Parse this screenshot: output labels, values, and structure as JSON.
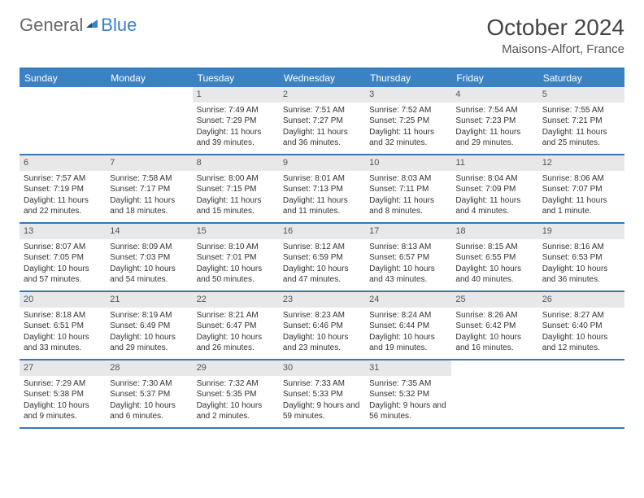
{
  "logo": {
    "text1": "General",
    "text2": "Blue"
  },
  "title": "October 2024",
  "location": "Maisons-Alfort, France",
  "colors": {
    "header_bar": "#3b82c4",
    "border": "#3478b8",
    "daynum_bg": "#e7e8e9",
    "logo_blue": "#3b7fc4"
  },
  "weekdays": [
    "Sunday",
    "Monday",
    "Tuesday",
    "Wednesday",
    "Thursday",
    "Friday",
    "Saturday"
  ],
  "weeks": [
    [
      {
        "n": "",
        "sr": "",
        "ss": "",
        "dl": ""
      },
      {
        "n": "",
        "sr": "",
        "ss": "",
        "dl": ""
      },
      {
        "n": "1",
        "sr": "Sunrise: 7:49 AM",
        "ss": "Sunset: 7:29 PM",
        "dl": "Daylight: 11 hours and 39 minutes."
      },
      {
        "n": "2",
        "sr": "Sunrise: 7:51 AM",
        "ss": "Sunset: 7:27 PM",
        "dl": "Daylight: 11 hours and 36 minutes."
      },
      {
        "n": "3",
        "sr": "Sunrise: 7:52 AM",
        "ss": "Sunset: 7:25 PM",
        "dl": "Daylight: 11 hours and 32 minutes."
      },
      {
        "n": "4",
        "sr": "Sunrise: 7:54 AM",
        "ss": "Sunset: 7:23 PM",
        "dl": "Daylight: 11 hours and 29 minutes."
      },
      {
        "n": "5",
        "sr": "Sunrise: 7:55 AM",
        "ss": "Sunset: 7:21 PM",
        "dl": "Daylight: 11 hours and 25 minutes."
      }
    ],
    [
      {
        "n": "6",
        "sr": "Sunrise: 7:57 AM",
        "ss": "Sunset: 7:19 PM",
        "dl": "Daylight: 11 hours and 22 minutes."
      },
      {
        "n": "7",
        "sr": "Sunrise: 7:58 AM",
        "ss": "Sunset: 7:17 PM",
        "dl": "Daylight: 11 hours and 18 minutes."
      },
      {
        "n": "8",
        "sr": "Sunrise: 8:00 AM",
        "ss": "Sunset: 7:15 PM",
        "dl": "Daylight: 11 hours and 15 minutes."
      },
      {
        "n": "9",
        "sr": "Sunrise: 8:01 AM",
        "ss": "Sunset: 7:13 PM",
        "dl": "Daylight: 11 hours and 11 minutes."
      },
      {
        "n": "10",
        "sr": "Sunrise: 8:03 AM",
        "ss": "Sunset: 7:11 PM",
        "dl": "Daylight: 11 hours and 8 minutes."
      },
      {
        "n": "11",
        "sr": "Sunrise: 8:04 AM",
        "ss": "Sunset: 7:09 PM",
        "dl": "Daylight: 11 hours and 4 minutes."
      },
      {
        "n": "12",
        "sr": "Sunrise: 8:06 AM",
        "ss": "Sunset: 7:07 PM",
        "dl": "Daylight: 11 hours and 1 minute."
      }
    ],
    [
      {
        "n": "13",
        "sr": "Sunrise: 8:07 AM",
        "ss": "Sunset: 7:05 PM",
        "dl": "Daylight: 10 hours and 57 minutes."
      },
      {
        "n": "14",
        "sr": "Sunrise: 8:09 AM",
        "ss": "Sunset: 7:03 PM",
        "dl": "Daylight: 10 hours and 54 minutes."
      },
      {
        "n": "15",
        "sr": "Sunrise: 8:10 AM",
        "ss": "Sunset: 7:01 PM",
        "dl": "Daylight: 10 hours and 50 minutes."
      },
      {
        "n": "16",
        "sr": "Sunrise: 8:12 AM",
        "ss": "Sunset: 6:59 PM",
        "dl": "Daylight: 10 hours and 47 minutes."
      },
      {
        "n": "17",
        "sr": "Sunrise: 8:13 AM",
        "ss": "Sunset: 6:57 PM",
        "dl": "Daylight: 10 hours and 43 minutes."
      },
      {
        "n": "18",
        "sr": "Sunrise: 8:15 AM",
        "ss": "Sunset: 6:55 PM",
        "dl": "Daylight: 10 hours and 40 minutes."
      },
      {
        "n": "19",
        "sr": "Sunrise: 8:16 AM",
        "ss": "Sunset: 6:53 PM",
        "dl": "Daylight: 10 hours and 36 minutes."
      }
    ],
    [
      {
        "n": "20",
        "sr": "Sunrise: 8:18 AM",
        "ss": "Sunset: 6:51 PM",
        "dl": "Daylight: 10 hours and 33 minutes."
      },
      {
        "n": "21",
        "sr": "Sunrise: 8:19 AM",
        "ss": "Sunset: 6:49 PM",
        "dl": "Daylight: 10 hours and 29 minutes."
      },
      {
        "n": "22",
        "sr": "Sunrise: 8:21 AM",
        "ss": "Sunset: 6:47 PM",
        "dl": "Daylight: 10 hours and 26 minutes."
      },
      {
        "n": "23",
        "sr": "Sunrise: 8:23 AM",
        "ss": "Sunset: 6:46 PM",
        "dl": "Daylight: 10 hours and 23 minutes."
      },
      {
        "n": "24",
        "sr": "Sunrise: 8:24 AM",
        "ss": "Sunset: 6:44 PM",
        "dl": "Daylight: 10 hours and 19 minutes."
      },
      {
        "n": "25",
        "sr": "Sunrise: 8:26 AM",
        "ss": "Sunset: 6:42 PM",
        "dl": "Daylight: 10 hours and 16 minutes."
      },
      {
        "n": "26",
        "sr": "Sunrise: 8:27 AM",
        "ss": "Sunset: 6:40 PM",
        "dl": "Daylight: 10 hours and 12 minutes."
      }
    ],
    [
      {
        "n": "27",
        "sr": "Sunrise: 7:29 AM",
        "ss": "Sunset: 5:38 PM",
        "dl": "Daylight: 10 hours and 9 minutes."
      },
      {
        "n": "28",
        "sr": "Sunrise: 7:30 AM",
        "ss": "Sunset: 5:37 PM",
        "dl": "Daylight: 10 hours and 6 minutes."
      },
      {
        "n": "29",
        "sr": "Sunrise: 7:32 AM",
        "ss": "Sunset: 5:35 PM",
        "dl": "Daylight: 10 hours and 2 minutes."
      },
      {
        "n": "30",
        "sr": "Sunrise: 7:33 AM",
        "ss": "Sunset: 5:33 PM",
        "dl": "Daylight: 9 hours and 59 minutes."
      },
      {
        "n": "31",
        "sr": "Sunrise: 7:35 AM",
        "ss": "Sunset: 5:32 PM",
        "dl": "Daylight: 9 hours and 56 minutes."
      },
      {
        "n": "",
        "sr": "",
        "ss": "",
        "dl": ""
      },
      {
        "n": "",
        "sr": "",
        "ss": "",
        "dl": ""
      }
    ]
  ]
}
